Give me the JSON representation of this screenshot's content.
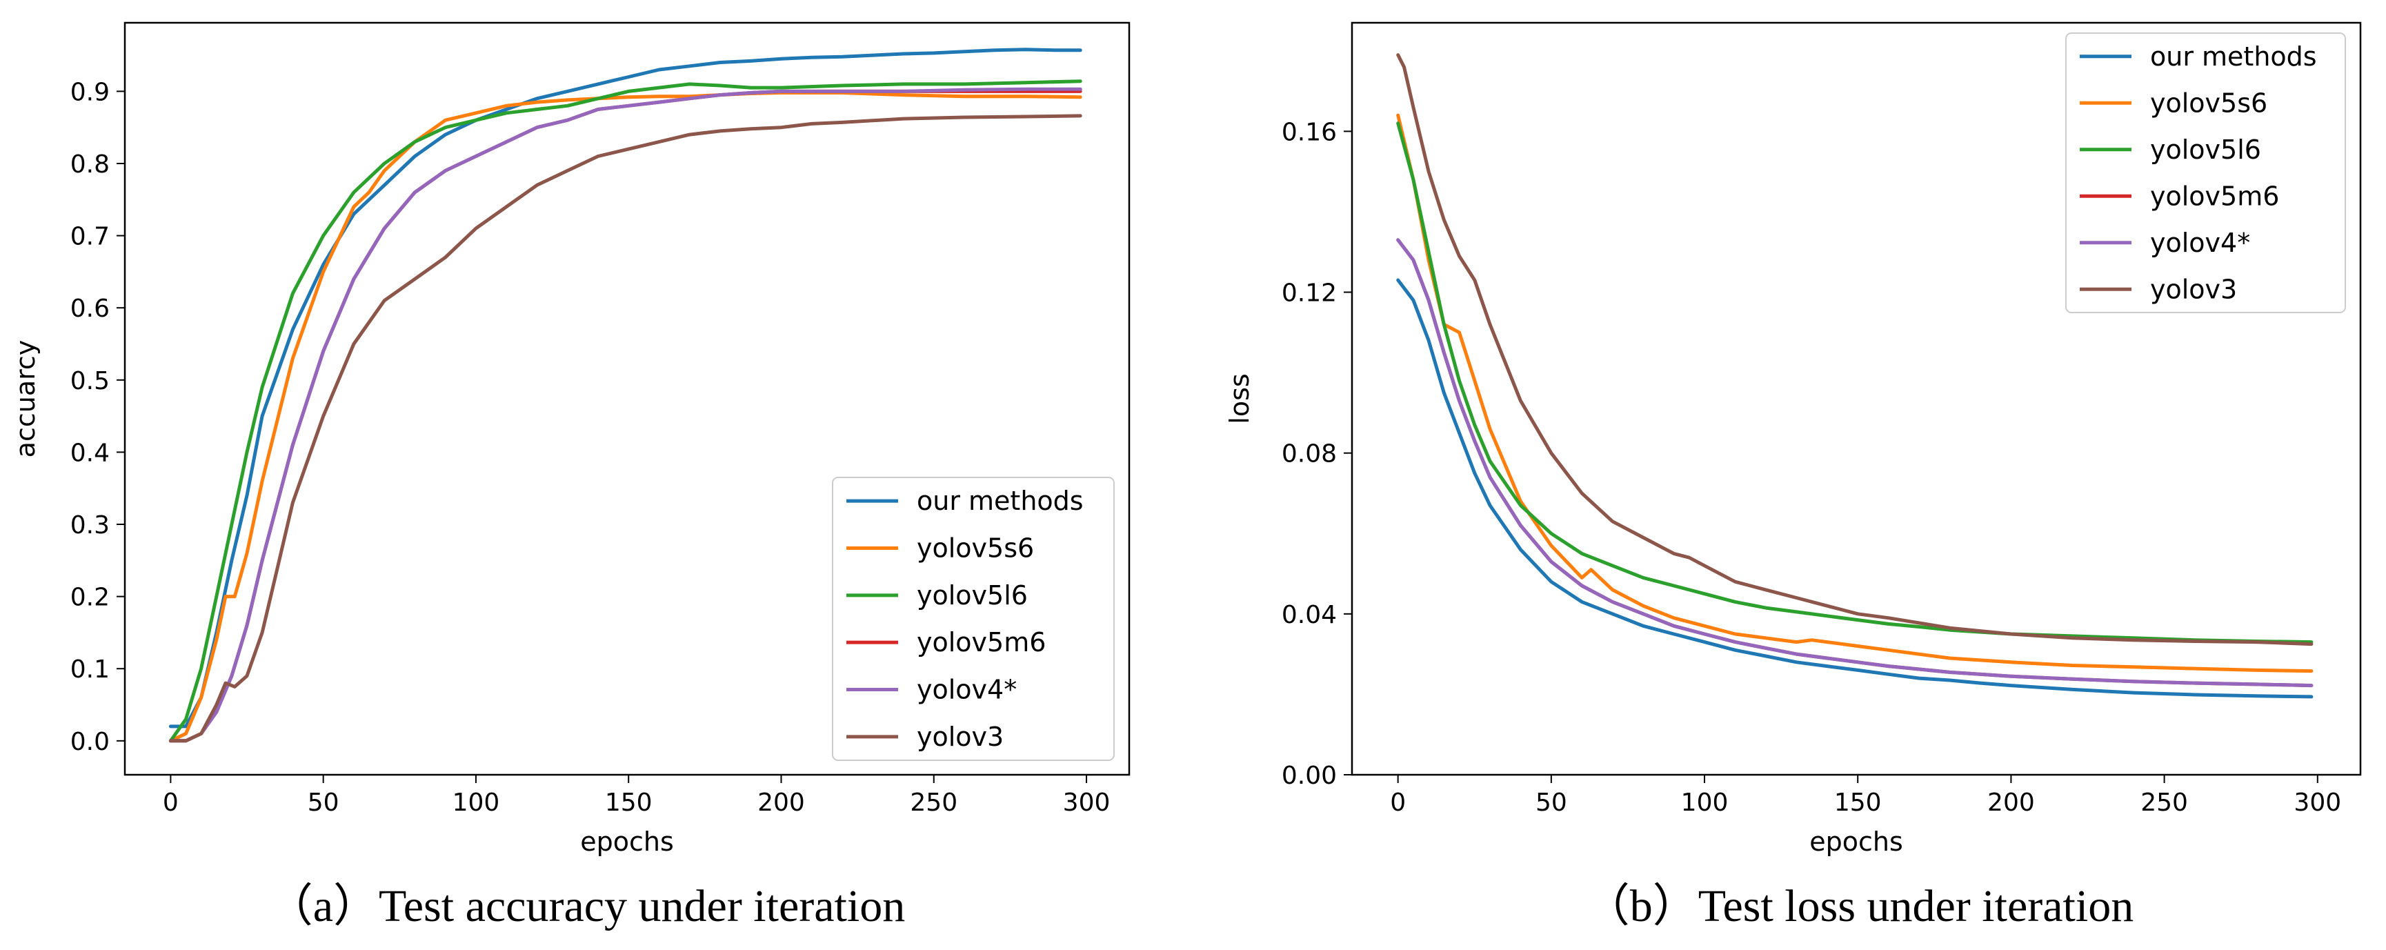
{
  "colors": {
    "our methods": "#1f77b4",
    "yolov5s6": "#ff7f0e",
    "yolov5l6": "#2ca02c",
    "yolov5m6": "#d62728",
    "yolov4*": "#9467bd",
    "yolov3": "#8c564b"
  },
  "chart_data": [
    {
      "type": "line",
      "caption": "（a）Test accuracy under iteration",
      "xlabel": "epochs",
      "ylabel": "accuarcy",
      "xlim": [
        -15,
        314
      ],
      "ylim": [
        -0.047,
        0.995
      ],
      "xticks": [
        0,
        50,
        100,
        150,
        200,
        250,
        300
      ],
      "xtick_labels": [
        "0",
        "50",
        "100",
        "150",
        "200",
        "250",
        "300"
      ],
      "yticks": [
        0.0,
        0.1,
        0.2,
        0.3,
        0.4,
        0.5,
        0.6,
        0.7,
        0.8,
        0.9
      ],
      "ytick_labels": [
        "0.0",
        "0.1",
        "0.2",
        "0.3",
        "0.4",
        "0.5",
        "0.6",
        "0.7",
        "0.8",
        "0.9"
      ],
      "legend_position": "lower-right",
      "legend": [
        "our methods",
        "yolov5s6",
        "yolov5l6",
        "yolov5m6",
        "yolov4*",
        "yolov3"
      ],
      "series": [
        {
          "name": "our methods",
          "x": [
            0,
            5,
            10,
            15,
            20,
            25,
            30,
            40,
            50,
            60,
            70,
            80,
            90,
            100,
            110,
            120,
            130,
            140,
            150,
            160,
            170,
            180,
            190,
            200,
            210,
            220,
            230,
            240,
            250,
            260,
            270,
            280,
            290,
            298
          ],
          "values": [
            0.02,
            0.02,
            0.06,
            0.15,
            0.25,
            0.34,
            0.45,
            0.57,
            0.66,
            0.73,
            0.77,
            0.81,
            0.84,
            0.86,
            0.875,
            0.89,
            0.9,
            0.91,
            0.92,
            0.93,
            0.935,
            0.94,
            0.942,
            0.945,
            0.947,
            0.948,
            0.95,
            0.952,
            0.953,
            0.955,
            0.957,
            0.958,
            0.957,
            0.957
          ]
        },
        {
          "name": "yolov5s6",
          "x": [
            0,
            5,
            10,
            15,
            18,
            21,
            25,
            30,
            40,
            50,
            60,
            65,
            70,
            80,
            90,
            100,
            110,
            120,
            130,
            140,
            150,
            160,
            170,
            180,
            190,
            200,
            220,
            240,
            260,
            280,
            298
          ],
          "values": [
            0.0,
            0.01,
            0.06,
            0.14,
            0.2,
            0.2,
            0.26,
            0.36,
            0.53,
            0.65,
            0.74,
            0.76,
            0.79,
            0.83,
            0.86,
            0.87,
            0.88,
            0.885,
            0.888,
            0.89,
            0.892,
            0.893,
            0.893,
            0.895,
            0.897,
            0.898,
            0.898,
            0.895,
            0.893,
            0.893,
            0.892
          ]
        },
        {
          "name": "yolov5l6",
          "x": [
            0,
            5,
            10,
            15,
            20,
            25,
            30,
            40,
            50,
            60,
            70,
            80,
            90,
            100,
            110,
            120,
            130,
            140,
            150,
            160,
            170,
            180,
            190,
            200,
            220,
            240,
            260,
            280,
            298
          ],
          "values": [
            0.0,
            0.03,
            0.1,
            0.2,
            0.3,
            0.4,
            0.49,
            0.62,
            0.7,
            0.76,
            0.8,
            0.83,
            0.85,
            0.86,
            0.87,
            0.875,
            0.88,
            0.89,
            0.9,
            0.905,
            0.91,
            0.908,
            0.905,
            0.905,
            0.908,
            0.91,
            0.91,
            0.912,
            0.914
          ]
        },
        {
          "name": "yolov5m6",
          "x": [
            0,
            5,
            10,
            15,
            20,
            25,
            30,
            40,
            50,
            60,
            70,
            80,
            90,
            100,
            110,
            120,
            130,
            140,
            150,
            160,
            170,
            180,
            190,
            200,
            220,
            240,
            260,
            280,
            298
          ],
          "values": [
            0.0,
            0.0,
            0.01,
            0.04,
            0.09,
            0.16,
            0.25,
            0.41,
            0.54,
            0.64,
            0.71,
            0.76,
            0.79,
            0.81,
            0.83,
            0.85,
            0.86,
            0.875,
            0.88,
            0.885,
            0.89,
            0.895,
            0.898,
            0.9,
            0.9,
            0.9,
            0.9,
            0.9,
            0.9
          ]
        },
        {
          "name": "yolov4*",
          "x": [
            0,
            5,
            10,
            15,
            20,
            25,
            30,
            40,
            50,
            60,
            70,
            80,
            90,
            100,
            110,
            120,
            130,
            140,
            150,
            160,
            170,
            180,
            190,
            200,
            220,
            240,
            260,
            280,
            298
          ],
          "values": [
            0.0,
            0.0,
            0.01,
            0.04,
            0.09,
            0.16,
            0.25,
            0.41,
            0.54,
            0.64,
            0.71,
            0.76,
            0.79,
            0.81,
            0.83,
            0.85,
            0.86,
            0.875,
            0.88,
            0.885,
            0.89,
            0.895,
            0.898,
            0.9,
            0.9,
            0.9,
            0.902,
            0.903,
            0.903
          ]
        },
        {
          "name": "yolov3",
          "x": [
            0,
            5,
            10,
            15,
            18,
            21,
            25,
            30,
            35,
            40,
            50,
            60,
            70,
            80,
            90,
            100,
            110,
            120,
            130,
            140,
            150,
            160,
            170,
            180,
            190,
            200,
            210,
            220,
            240,
            260,
            280,
            298
          ],
          "values": [
            0.0,
            0.0,
            0.01,
            0.05,
            0.08,
            0.075,
            0.09,
            0.15,
            0.24,
            0.33,
            0.45,
            0.55,
            0.61,
            0.64,
            0.67,
            0.71,
            0.74,
            0.77,
            0.79,
            0.81,
            0.82,
            0.83,
            0.84,
            0.845,
            0.848,
            0.85,
            0.855,
            0.857,
            0.862,
            0.864,
            0.865,
            0.866
          ]
        }
      ]
    },
    {
      "type": "line",
      "caption": "（b）Test loss under iteration",
      "xlabel": "epochs",
      "ylabel": "loss",
      "xlim": [
        -15,
        314
      ],
      "ylim": [
        0.0,
        0.187
      ],
      "xticks": [
        0,
        50,
        100,
        150,
        200,
        250,
        300
      ],
      "xtick_labels": [
        "0",
        "50",
        "100",
        "150",
        "200",
        "250",
        "300"
      ],
      "yticks": [
        0.0,
        0.04,
        0.08,
        0.12,
        0.16
      ],
      "ytick_labels": [
        "0.00",
        "0.04",
        "0.08",
        "0.12",
        "0.16"
      ],
      "legend_position": "upper-right",
      "legend": [
        "our methods",
        "yolov5s6",
        "yolov5l6",
        "yolov5m6",
        "yolov4*",
        "yolov3"
      ],
      "series": [
        {
          "name": "our methods",
          "x": [
            0,
            5,
            10,
            15,
            20,
            25,
            30,
            40,
            50,
            60,
            70,
            80,
            90,
            100,
            110,
            120,
            130,
            140,
            150,
            160,
            170,
            180,
            190,
            200,
            220,
            240,
            260,
            280,
            298
          ],
          "values": [
            0.123,
            0.118,
            0.108,
            0.095,
            0.085,
            0.075,
            0.067,
            0.056,
            0.048,
            0.043,
            0.04,
            0.037,
            0.035,
            0.033,
            0.031,
            0.0295,
            0.028,
            0.027,
            0.026,
            0.025,
            0.024,
            0.0235,
            0.0228,
            0.0222,
            0.0212,
            0.0204,
            0.0199,
            0.0196,
            0.0194
          ]
        },
        {
          "name": "yolov5s6",
          "x": [
            0,
            5,
            10,
            15,
            20,
            25,
            30,
            40,
            50,
            60,
            63,
            70,
            80,
            90,
            100,
            110,
            120,
            130,
            135,
            140,
            150,
            160,
            180,
            200,
            220,
            240,
            260,
            280,
            298
          ],
          "values": [
            0.164,
            0.148,
            0.128,
            0.112,
            0.11,
            0.098,
            0.086,
            0.068,
            0.057,
            0.049,
            0.051,
            0.046,
            0.042,
            0.039,
            0.037,
            0.035,
            0.034,
            0.033,
            0.0335,
            0.033,
            0.032,
            0.031,
            0.029,
            0.028,
            0.0272,
            0.0268,
            0.0264,
            0.026,
            0.0258
          ]
        },
        {
          "name": "yolov5l6",
          "x": [
            0,
            5,
            10,
            15,
            20,
            25,
            30,
            40,
            50,
            60,
            70,
            80,
            90,
            100,
            110,
            120,
            130,
            140,
            150,
            160,
            170,
            180,
            200,
            220,
            240,
            260,
            280,
            298
          ],
          "values": [
            0.162,
            0.148,
            0.13,
            0.112,
            0.098,
            0.087,
            0.078,
            0.067,
            0.06,
            0.055,
            0.052,
            0.049,
            0.047,
            0.045,
            0.043,
            0.0415,
            0.0405,
            0.0395,
            0.0385,
            0.0375,
            0.0368,
            0.036,
            0.035,
            0.0345,
            0.034,
            0.0335,
            0.0332,
            0.033
          ]
        },
        {
          "name": "yolov5m6",
          "x": [
            0,
            5,
            10,
            15,
            20,
            25,
            30,
            40,
            50,
            60,
            70,
            80,
            90,
            100,
            110,
            120,
            130,
            140,
            150,
            160,
            180,
            200,
            220,
            240,
            260,
            280,
            298
          ],
          "values": [
            0.133,
            0.128,
            0.118,
            0.105,
            0.093,
            0.083,
            0.074,
            0.062,
            0.053,
            0.047,
            0.043,
            0.04,
            0.037,
            0.035,
            0.033,
            0.0315,
            0.03,
            0.029,
            0.028,
            0.027,
            0.0255,
            0.0245,
            0.0238,
            0.0232,
            0.0228,
            0.0225,
            0.0222
          ]
        },
        {
          "name": "yolov4*",
          "x": [
            0,
            5,
            10,
            15,
            20,
            25,
            30,
            40,
            50,
            60,
            70,
            80,
            90,
            100,
            110,
            120,
            130,
            140,
            150,
            160,
            180,
            200,
            220,
            240,
            260,
            280,
            298
          ],
          "values": [
            0.133,
            0.128,
            0.118,
            0.105,
            0.093,
            0.083,
            0.074,
            0.062,
            0.053,
            0.047,
            0.043,
            0.04,
            0.037,
            0.035,
            0.033,
            0.0315,
            0.03,
            0.029,
            0.028,
            0.027,
            0.0255,
            0.0245,
            0.0238,
            0.0232,
            0.0228,
            0.0225,
            0.0222
          ]
        },
        {
          "name": "yolov3",
          "x": [
            0,
            2,
            5,
            10,
            15,
            20,
            25,
            30,
            40,
            50,
            60,
            70,
            80,
            90,
            95,
            100,
            110,
            120,
            130,
            140,
            150,
            160,
            180,
            200,
            220,
            240,
            260,
            280,
            298
          ],
          "values": [
            0.179,
            0.176,
            0.166,
            0.15,
            0.138,
            0.129,
            0.123,
            0.112,
            0.093,
            0.08,
            0.07,
            0.063,
            0.059,
            0.055,
            0.054,
            0.052,
            0.048,
            0.046,
            0.044,
            0.042,
            0.04,
            0.039,
            0.0365,
            0.035,
            0.034,
            0.0335,
            0.0332,
            0.033,
            0.0325
          ]
        }
      ]
    }
  ]
}
